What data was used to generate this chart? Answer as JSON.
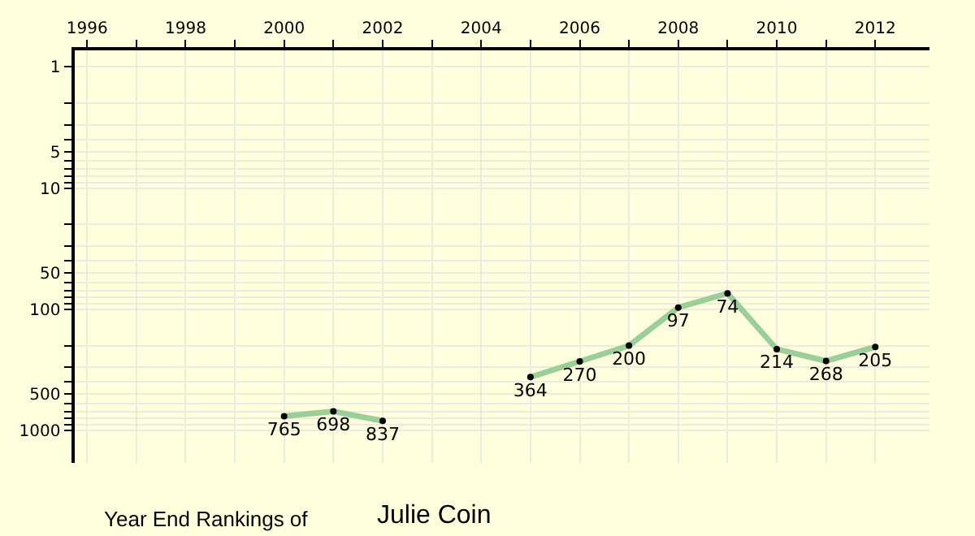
{
  "chart_data": {
    "type": "line",
    "title": "Year End Rankings of",
    "subtitle": "Julie Coin",
    "x": [
      2000,
      2001,
      2002,
      2003,
      2004,
      2005,
      2006,
      2007,
      2008,
      2009,
      2010,
      2011,
      2012
    ],
    "series": [
      {
        "color": "#9ccf98",
        "values": [
          765,
          698,
          837,
          null,
          null,
          364,
          270,
          200,
          97,
          74,
          214,
          268,
          205
        ]
      }
    ],
    "data_labels": true,
    "marker": "circle",
    "line_style": "solid",
    "log": "y",
    "grid": true,
    "xlim": [
      1995.75,
      2013.1
    ],
    "xticks": [
      1996,
      {
        "value": 1997,
        "label": null
      },
      1998,
      {
        "value": 1999,
        "label": null
      },
      2000,
      {
        "value": 2001,
        "label": null
      },
      2002,
      {
        "value": 2003,
        "label": null
      },
      2004,
      {
        "value": 2005,
        "label": null
      },
      2006,
      {
        "value": 2007,
        "label": null
      },
      2008,
      {
        "value": 2009,
        "label": null
      },
      2010,
      {
        "value": 2011,
        "label": null
      },
      2012
    ],
    "ylim": [
      1860,
      0.73
    ],
    "yticks": [
      1,
      {
        "value": 2,
        "label": null
      },
      {
        "value": 3,
        "label": null
      },
      {
        "value": 4,
        "label": null
      },
      5,
      {
        "value": 6,
        "label": null
      },
      {
        "value": 7,
        "label": null
      },
      {
        "value": 8,
        "label": null
      },
      {
        "value": 9,
        "label": null
      },
      10,
      {
        "value": 20,
        "label": null
      },
      {
        "value": 30,
        "label": null
      },
      {
        "value": 40,
        "label": null
      },
      50,
      {
        "value": 60,
        "label": null
      },
      {
        "value": 70,
        "label": null
      },
      {
        "value": 80,
        "label": null
      },
      {
        "value": 90,
        "label": null
      },
      100,
      {
        "value": 200,
        "label": null
      },
      {
        "value": 300,
        "label": null
      },
      {
        "value": 400,
        "label": null
      },
      500,
      {
        "value": 600,
        "label": null
      },
      {
        "value": 700,
        "label": null
      },
      {
        "value": 800,
        "label": null
      },
      {
        "value": 900,
        "label": null
      },
      1000
    ]
  }
}
